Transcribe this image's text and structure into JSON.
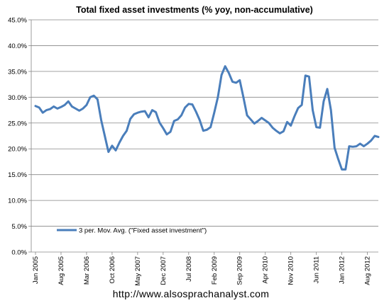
{
  "chart_data": {
    "type": "line",
    "title": "Total fixed asset investments (% yoy, non-accumulative)",
    "footer": "http://www.alsosprachanalyst.com",
    "ylim": [
      0,
      45
    ],
    "y_ticks": [
      "0.0%",
      "5.0%",
      "10.0%",
      "15.0%",
      "20.0%",
      "25.0%",
      "30.0%",
      "35.0%",
      "40.0%",
      "45.0%"
    ],
    "x_tick_labels": [
      "Jan 2005",
      "Aug 2005",
      "Mar 2006",
      "Oct 2006",
      "May 2007",
      "Dec 2007",
      "Jul 2008",
      "Feb 2009",
      "Sep 2009",
      "Apr 2010",
      "Nov 2010",
      "Jun 2011",
      "Jan 2012",
      "Aug 2012"
    ],
    "grid": "horizontal",
    "legend_position": "bottom-left",
    "series": [
      {
        "name": "3 per. Mov. Avg. (\"Fixed asset investment\")",
        "color": "#4a7ebb",
        "values": [
          28.3,
          28.0,
          27.0,
          27.5,
          27.7,
          28.2,
          27.8,
          28.1,
          28.5,
          29.2,
          28.2,
          27.8,
          27.4,
          27.8,
          28.5,
          30.0,
          30.3,
          29.6,
          25.6,
          22.5,
          19.4,
          20.6,
          19.7,
          21.2,
          22.5,
          23.5,
          25.8,
          26.7,
          27.0,
          27.2,
          27.3,
          26.1,
          27.5,
          27.1,
          25.1,
          24.0,
          22.8,
          23.3,
          25.4,
          25.7,
          26.5,
          28.0,
          28.7,
          28.6,
          27.2,
          25.6,
          23.5,
          23.7,
          24.2,
          27.0,
          30.0,
          34.3,
          36.0,
          34.7,
          33.0,
          32.8,
          33.3,
          30.0,
          26.5,
          25.7,
          24.9,
          25.4,
          26.0,
          25.5,
          25.0,
          24.1,
          23.5,
          23.0,
          23.4,
          25.2,
          24.5,
          26.3,
          27.9,
          28.5,
          34.2,
          34.0,
          27.5,
          24.2,
          24.1,
          29.2,
          31.6,
          27.5,
          20.2,
          18.0,
          16.0,
          16.0,
          20.5,
          20.4,
          20.5,
          21.0,
          20.5,
          21.0,
          21.6,
          22.5,
          22.3
        ]
      }
    ]
  }
}
